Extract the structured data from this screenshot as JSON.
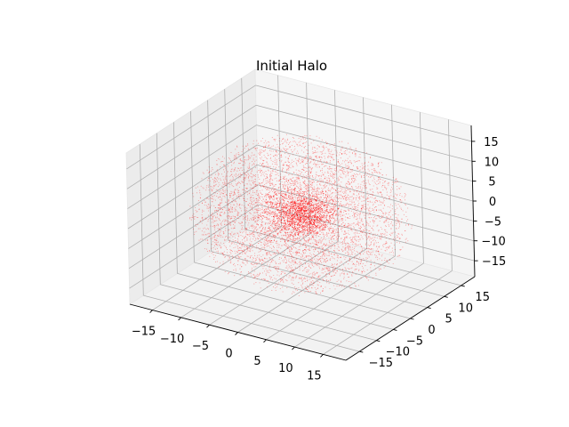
{
  "chart_data": {
    "type": "scatter3d",
    "title": "Initial Halo",
    "xlabel": "",
    "ylabel": "",
    "zlabel": "",
    "x_ticks": [
      -15,
      -10,
      -5,
      0,
      5,
      10,
      15
    ],
    "y_ticks": [
      -15,
      -10,
      -5,
      0,
      5,
      10,
      15
    ],
    "z_ticks": [
      -15,
      -10,
      -5,
      0,
      5,
      10,
      15
    ],
    "x_tick_labels": [
      "−15",
      "−10",
      "−5",
      "0",
      "5",
      "10",
      "15"
    ],
    "y_tick_labels": [
      "−15",
      "−10",
      "−5",
      "0",
      "5",
      "10",
      "15"
    ],
    "z_tick_labels": [
      "−15",
      "−10",
      "−5",
      "0",
      "5",
      "10",
      "15"
    ],
    "xlim": [
      -19,
      19
    ],
    "ylim": [
      -19,
      19
    ],
    "zlim": [
      -19,
      19
    ],
    "grid": true,
    "series": [
      {
        "color": "#ff0000",
        "marker": "point",
        "point_count": 7000,
        "distribution": "spherical halo, dense core at origin, radius ~17",
        "core_radius": 2.5,
        "halo_radius": 17
      }
    ]
  }
}
